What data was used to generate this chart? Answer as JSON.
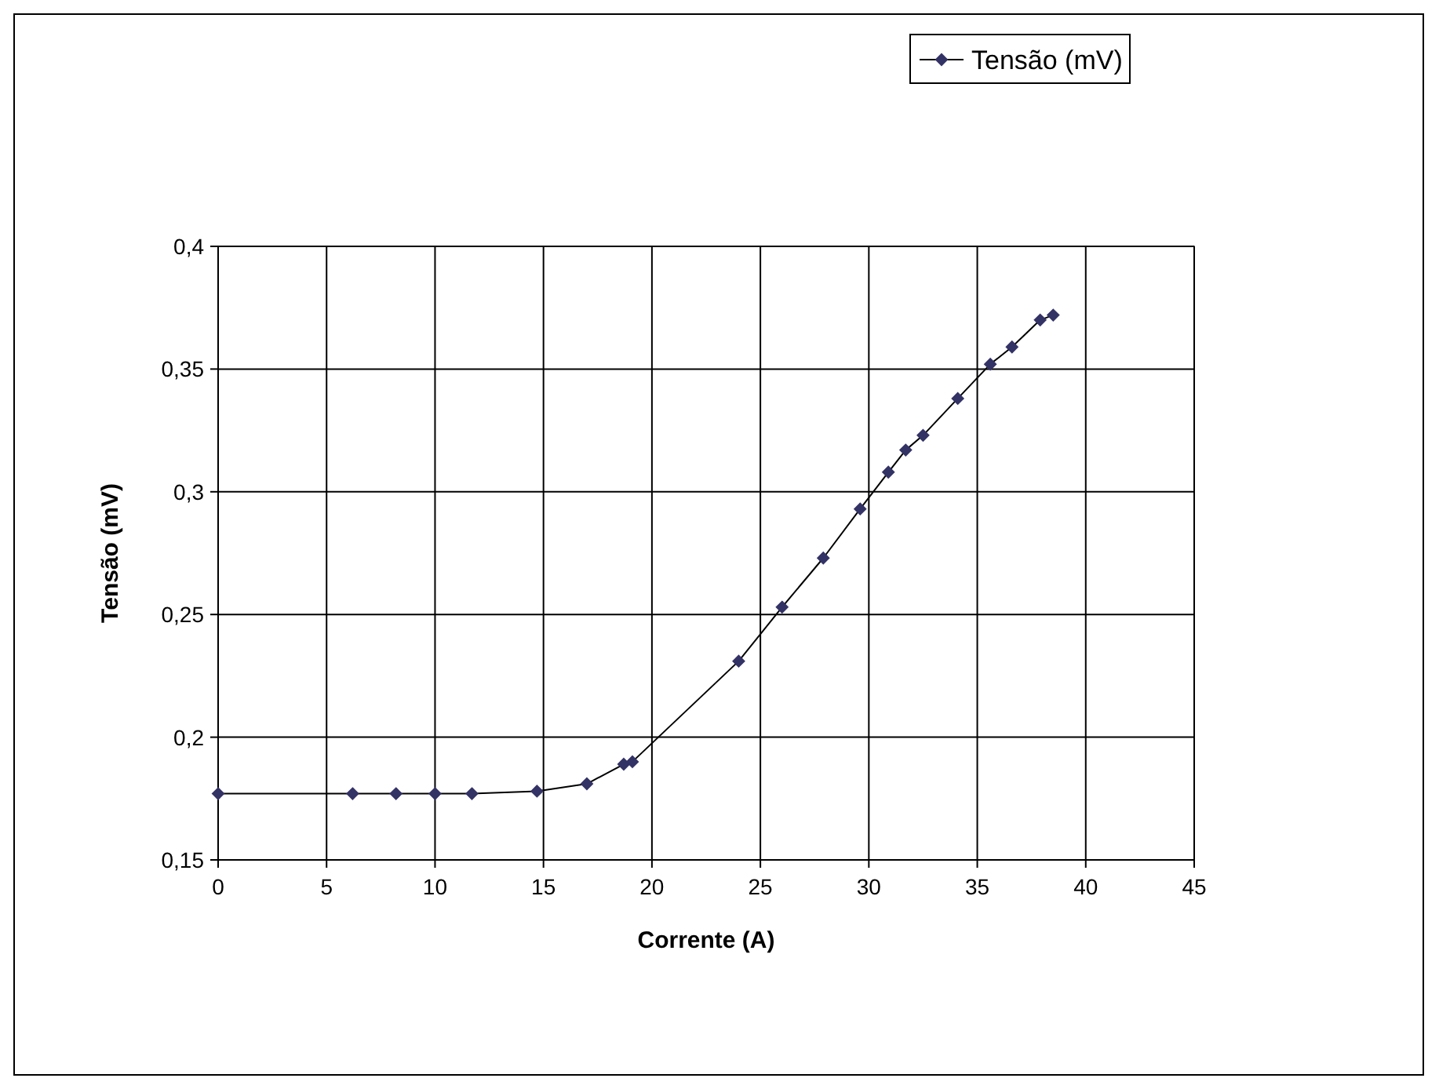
{
  "chart_data": {
    "type": "line",
    "xlabel": "Corrente (A)",
    "ylabel": "Tensão (mV)",
    "x": [
      0,
      6.2,
      8.2,
      10,
      11.7,
      14.7,
      17,
      18.7,
      19.1,
      24,
      26,
      27.9,
      29.6,
      30.9,
      31.7,
      32.5,
      34.1,
      35.6,
      36.6,
      37.9,
      38.5
    ],
    "series": [
      {
        "name": "Tensão (mV)",
        "color": "#333366",
        "values": [
          0.177,
          0.177,
          0.177,
          0.177,
          0.177,
          0.178,
          0.181,
          0.189,
          0.19,
          0.231,
          0.253,
          0.273,
          0.293,
          0.308,
          0.317,
          0.323,
          0.338,
          0.352,
          0.359,
          0.37,
          0.372
        ]
      }
    ],
    "xlim": [
      0,
      45
    ],
    "xticks": [
      0,
      5,
      10,
      15,
      20,
      25,
      30,
      35,
      40,
      45
    ],
    "ylim": [
      0.15,
      0.4
    ],
    "yticks": [
      {
        "value": 0.15,
        "label": "0,15"
      },
      {
        "value": 0.2,
        "label": "0,2"
      },
      {
        "value": 0.25,
        "label": "0,25"
      },
      {
        "value": 0.3,
        "label": "0,3"
      },
      {
        "value": 0.35,
        "label": "0,35"
      },
      {
        "value": 0.4,
        "label": "0,4"
      }
    ],
    "grid": true,
    "legend": "top right",
    "marker": "diamond",
    "line_style": "solid"
  }
}
